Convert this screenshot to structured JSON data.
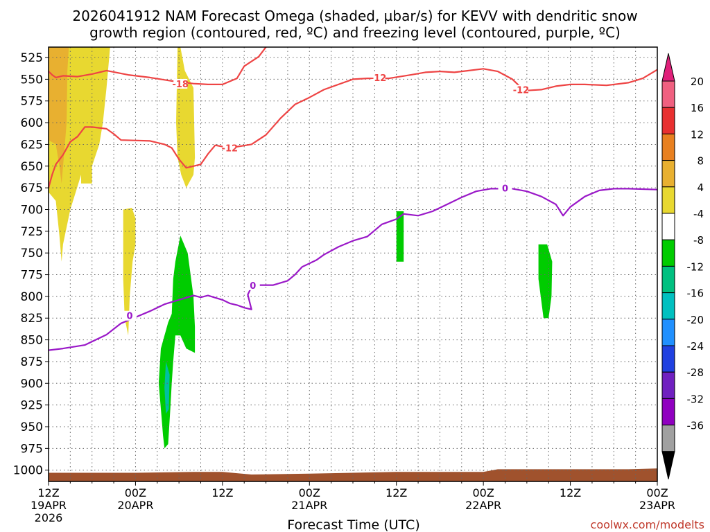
{
  "chart_data": {
    "type": "heatmap",
    "title_line1": "2026041912 NAM Forecast Omega (shaded, µbar/s) for KEVV with dendritic snow",
    "title_line2": "growth region (contoured, red, ºC) and freezing level (contoured, purple, ºC)",
    "xlabel": "Forecast Time (UTC)",
    "credit": "coolwx.com/modelts",
    "xlim": [
      0,
      84
    ],
    "ylim": [
      1013,
      513
    ],
    "y_ticks": [
      "525",
      "550",
      "575",
      "600",
      "625",
      "650",
      "675",
      "700",
      "725",
      "750",
      "775",
      "800",
      "825",
      "850",
      "875",
      "900",
      "925",
      "950",
      "975",
      "1000"
    ],
    "x_ticks": [
      {
        "hour": 0,
        "line1": "12Z",
        "line2": "19APR",
        "line3": "2026"
      },
      {
        "hour": 12,
        "line1": "00Z",
        "line2": "20APR",
        "line3": ""
      },
      {
        "hour": 24,
        "line1": "12Z",
        "line2": "",
        "line3": ""
      },
      {
        "hour": 36,
        "line1": "00Z",
        "line2": "21APR",
        "line3": ""
      },
      {
        "hour": 48,
        "line1": "12Z",
        "line2": "",
        "line3": ""
      },
      {
        "hour": 60,
        "line1": "00Z",
        "line2": "22APR",
        "line3": ""
      },
      {
        "hour": 72,
        "line1": "12Z",
        "line2": "",
        "line3": ""
      },
      {
        "hour": 84,
        "line1": "00Z",
        "line2": "23APR",
        "line3": ""
      }
    ],
    "colorbar": {
      "labels": [
        "20",
        "16",
        "12",
        "8",
        "4",
        "-4",
        "-8",
        "-12",
        "-16",
        "-20",
        "-24",
        "-28",
        "-32",
        "-36"
      ],
      "colors": [
        "#f06080",
        "#e83030",
        "#e88020",
        "#e8b030",
        "#e8d830",
        "#ffffff",
        "#00cc00",
        "#00c080",
        "#00c0c0",
        "#2090ff",
        "#2040e0",
        "#7020c0",
        "#9000c0",
        "#a0a0a0"
      ],
      "extend_high": "#e0207a",
      "extend_low": "#000000"
    },
    "series": [
      {
        "name": "-12 contour (upper)",
        "color": "#ee4444",
        "label": "-12",
        "points": [
          [
            30,
            513
          ],
          [
            29,
            524
          ],
          [
            27,
            535
          ],
          [
            26,
            549
          ],
          [
            24,
            556
          ],
          [
            22,
            556
          ],
          [
            20,
            555
          ],
          [
            17,
            552
          ],
          [
            14,
            548
          ],
          [
            11,
            545
          ],
          [
            8,
            540
          ],
          [
            6,
            544
          ],
          [
            4,
            547
          ],
          [
            2,
            546
          ],
          [
            1,
            548
          ],
          [
            0.5,
            545
          ],
          [
            0,
            541
          ]
        ]
      },
      {
        "name": "-18 contour label",
        "color": "#ee4444",
        "label": "-18",
        "points": [
          [
            17,
            555
          ]
        ]
      },
      {
        "name": "-12 contour (lower)",
        "color": "#ee4444",
        "label": "-12",
        "points": [
          [
            0,
            675
          ],
          [
            0.5,
            660
          ],
          [
            1,
            648
          ],
          [
            2,
            637
          ],
          [
            3,
            622
          ],
          [
            4,
            616
          ],
          [
            5,
            605
          ],
          [
            6,
            605
          ],
          [
            8,
            607
          ],
          [
            9,
            613
          ],
          [
            10,
            620
          ],
          [
            14,
            621
          ],
          [
            16,
            625
          ],
          [
            17,
            629
          ],
          [
            18,
            642
          ],
          [
            19,
            652
          ],
          [
            21,
            648
          ],
          [
            22,
            636
          ],
          [
            23,
            626
          ],
          [
            25,
            629
          ],
          [
            28,
            625
          ],
          [
            30,
            614
          ],
          [
            32,
            595
          ],
          [
            34,
            579
          ],
          [
            36,
            571
          ],
          [
            38,
            562
          ],
          [
            40,
            556
          ],
          [
            42,
            550
          ],
          [
            44,
            549
          ],
          [
            47,
            549
          ],
          [
            50,
            545
          ],
          [
            52,
            542
          ],
          [
            54,
            541
          ],
          [
            56,
            542
          ],
          [
            58,
            540
          ],
          [
            60,
            538
          ],
          [
            62,
            541
          ],
          [
            64,
            550
          ],
          [
            65,
            558
          ],
          [
            66,
            563
          ],
          [
            68,
            562
          ],
          [
            70,
            558
          ],
          [
            72,
            556
          ],
          [
            74,
            556
          ],
          [
            77,
            557
          ],
          [
            80,
            554
          ],
          [
            82,
            549
          ],
          [
            84,
            539
          ]
        ]
      },
      {
        "name": "0 freezing level",
        "color": "#9a18c8",
        "label": "0",
        "points": [
          [
            0,
            862
          ],
          [
            2,
            860
          ],
          [
            5,
            856
          ],
          [
            8,
            844
          ],
          [
            10,
            831
          ],
          [
            12,
            824
          ],
          [
            14,
            817
          ],
          [
            16,
            809
          ],
          [
            18,
            804
          ],
          [
            20,
            799
          ],
          [
            21,
            801
          ],
          [
            22,
            799
          ],
          [
            24,
            804
          ],
          [
            25,
            808
          ],
          [
            26,
            810
          ],
          [
            27,
            813
          ],
          [
            28,
            815
          ],
          [
            27.5,
            798
          ],
          [
            28,
            789
          ],
          [
            29,
            787
          ],
          [
            31,
            787
          ],
          [
            33,
            782
          ],
          [
            34,
            775
          ],
          [
            35,
            766
          ],
          [
            37,
            758
          ],
          [
            38,
            752
          ],
          [
            40,
            743
          ],
          [
            42,
            736
          ],
          [
            44,
            731
          ],
          [
            46,
            717
          ],
          [
            48,
            711
          ],
          [
            49,
            705
          ],
          [
            51,
            707
          ],
          [
            53,
            702
          ],
          [
            55,
            694
          ],
          [
            57,
            686
          ],
          [
            59,
            679
          ],
          [
            61,
            676
          ],
          [
            64,
            676
          ],
          [
            66,
            679
          ],
          [
            68,
            685
          ],
          [
            70,
            694
          ],
          [
            71,
            707
          ],
          [
            72,
            697
          ],
          [
            74,
            685
          ],
          [
            76,
            678
          ],
          [
            78,
            676
          ],
          [
            80,
            676
          ],
          [
            84,
            677
          ]
        ]
      }
    ],
    "shaded_regions": [
      {
        "omega": 6,
        "color": "#e8d830",
        "outline": [
          [
            0,
            513
          ],
          [
            8.5,
            513
          ],
          [
            8,
            560
          ],
          [
            7.5,
            600
          ],
          [
            7,
            625
          ],
          [
            6,
            650
          ],
          [
            5.5,
            665
          ],
          [
            5.5,
            630
          ],
          [
            5,
            640
          ],
          [
            4.5,
            660
          ],
          [
            3,
            700
          ],
          [
            2,
            740
          ],
          [
            1.8,
            760
          ],
          [
            1.5,
            730
          ],
          [
            1,
            690
          ],
          [
            0,
            680
          ]
        ]
      },
      {
        "omega": 6,
        "color": "#e8d830",
        "outline": [
          [
            4.5,
            600
          ],
          [
            6,
            600
          ],
          [
            6,
            670
          ],
          [
            4.5,
            670
          ]
        ]
      },
      {
        "omega": 10,
        "color": "#e8b030",
        "outline": [
          [
            0,
            513
          ],
          [
            2.8,
            513
          ],
          [
            2.6,
            540
          ],
          [
            2.5,
            600
          ],
          [
            2.1,
            640
          ],
          [
            1.8,
            670
          ],
          [
            1.5,
            650
          ],
          [
            1,
            625
          ],
          [
            0,
            620
          ]
        ]
      },
      {
        "omega": 6,
        "color": "#e8d830",
        "outline": [
          [
            17.8,
            513
          ],
          [
            18.2,
            513
          ],
          [
            18.8,
            540
          ],
          [
            20,
            560
          ],
          [
            20.2,
            640
          ],
          [
            20,
            660
          ],
          [
            19,
            675
          ],
          [
            18.3,
            660
          ],
          [
            17.8,
            640
          ],
          [
            17.6,
            600
          ]
        ]
      },
      {
        "omega": 6,
        "color": "#e8d830",
        "outline": [
          [
            10.3,
            700
          ],
          [
            11.5,
            698
          ],
          [
            12.0,
            710
          ],
          [
            12.0,
            740
          ],
          [
            11.6,
            760
          ],
          [
            11.2,
            800
          ],
          [
            11.0,
            845
          ],
          [
            10.5,
            825
          ],
          [
            10.3,
            780
          ]
        ]
      },
      {
        "omega": -6,
        "color": "#00cc00",
        "outline": [
          [
            18.2,
            730
          ],
          [
            19.2,
            750
          ],
          [
            20,
            800
          ],
          [
            20.2,
            835
          ],
          [
            20.2,
            865
          ],
          [
            19,
            860
          ],
          [
            18.2,
            845
          ],
          [
            17.5,
            845
          ],
          [
            17.2,
            875
          ],
          [
            17,
            900
          ],
          [
            16.8,
            930
          ],
          [
            16.5,
            970
          ],
          [
            16,
            975
          ],
          [
            15.8,
            960
          ],
          [
            15.6,
            940
          ],
          [
            15.2,
            900
          ],
          [
            15.5,
            860
          ],
          [
            16.5,
            830
          ],
          [
            17,
            820
          ],
          [
            17.2,
            780
          ],
          [
            17.5,
            760
          ]
        ]
      },
      {
        "omega": -10,
        "color": "#00c0a0",
        "outline": [
          [
            16.2,
            875
          ],
          [
            16.7,
            890
          ],
          [
            16.6,
            930
          ],
          [
            16.2,
            935
          ],
          [
            16,
            905
          ]
        ]
      },
      {
        "omega": -6,
        "color": "#00cc00",
        "outline": [
          [
            48,
            702
          ],
          [
            49,
            702
          ],
          [
            49,
            760
          ],
          [
            48,
            760
          ]
        ]
      },
      {
        "omega": -6,
        "color": "#00cc00",
        "outline": [
          [
            67.6,
            740
          ],
          [
            68.8,
            740
          ],
          [
            69.5,
            760
          ],
          [
            69.4,
            800
          ],
          [
            69,
            825
          ],
          [
            68.3,
            825
          ],
          [
            67.6,
            780
          ]
        ]
      }
    ],
    "ground": {
      "color": "#a0522d"
    }
  }
}
